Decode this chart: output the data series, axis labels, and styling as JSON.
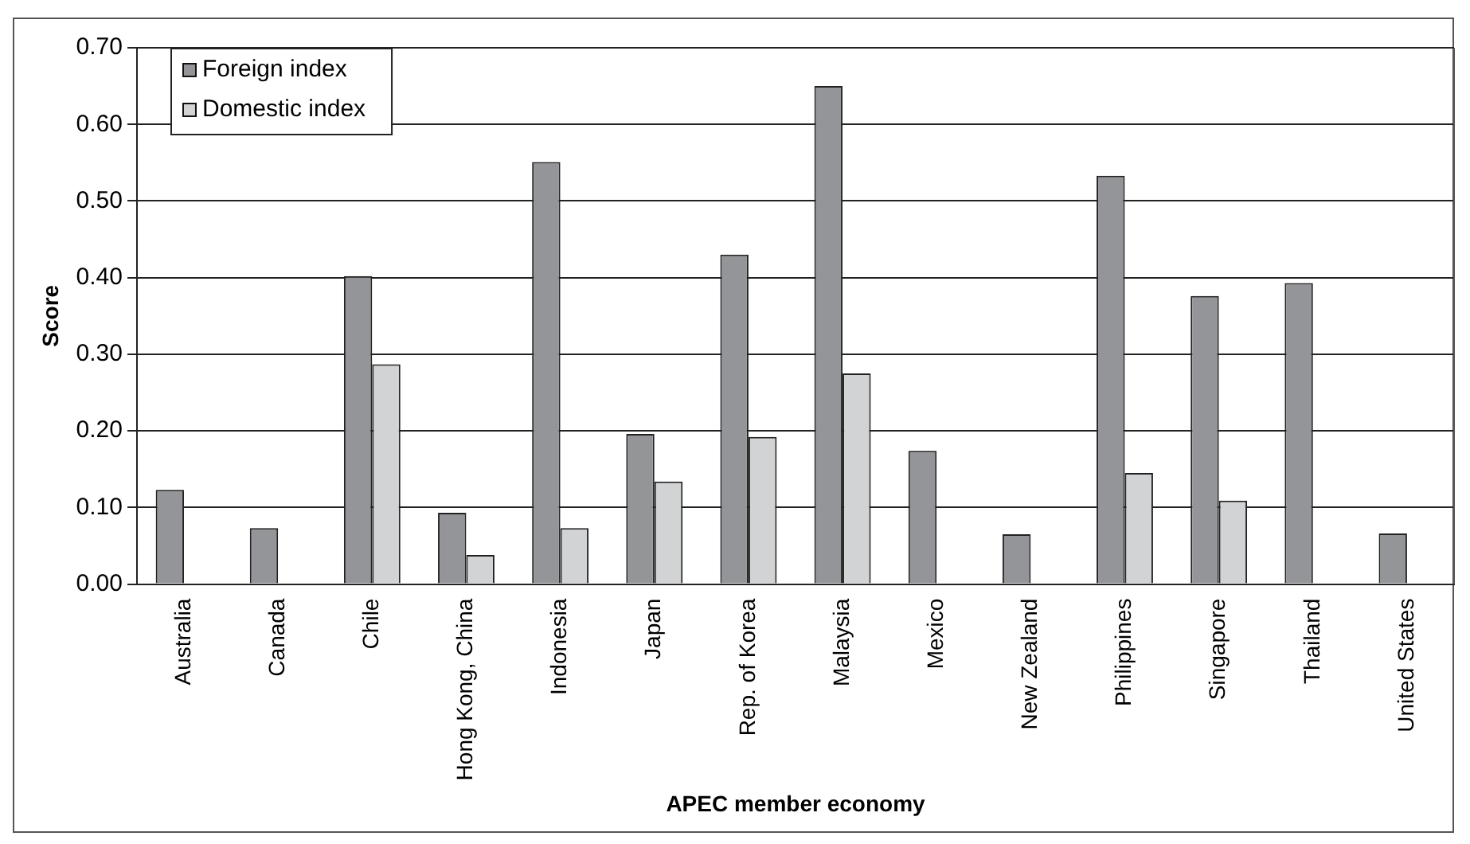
{
  "chart_data": {
    "type": "bar",
    "xlabel": "APEC member economy",
    "ylabel": "Score",
    "categories": [
      "Australia",
      "Canada",
      "Chile",
      "Hong Kong, China",
      "Indonesia",
      "Japan",
      "Rep. of Korea",
      "Malaysia",
      "Mexico",
      "New Zealand",
      "Philippines",
      "Singapore",
      "Thailand",
      "United States"
    ],
    "series": [
      {
        "name": "Foreign index",
        "color": "#939598",
        "values": [
          0.123,
          0.073,
          0.402,
          0.093,
          0.551,
          0.196,
          0.43,
          0.65,
          0.174,
          0.065,
          0.533,
          0.376,
          0.393,
          0.066
        ]
      },
      {
        "name": "Domestic index",
        "color": "#d1d3d4",
        "values": [
          null,
          null,
          0.287,
          0.038,
          0.073,
          0.134,
          0.192,
          0.275,
          null,
          null,
          0.145,
          0.109,
          null,
          null
        ]
      }
    ],
    "ylim": [
      0,
      0.7
    ],
    "yticks": [
      {
        "value": 0,
        "label": "0.00"
      },
      {
        "value": 0.1,
        "label": "0.10"
      },
      {
        "value": 0.2,
        "label": "0.20"
      },
      {
        "value": 0.3,
        "label": "0.30"
      },
      {
        "value": 0.4,
        "label": "0.40"
      },
      {
        "value": 0.5,
        "label": "0.50"
      },
      {
        "value": 0.6,
        "label": "0.60"
      },
      {
        "value": 0.7,
        "label": "0.70"
      }
    ],
    "grid": "y",
    "legend": "top left"
  }
}
